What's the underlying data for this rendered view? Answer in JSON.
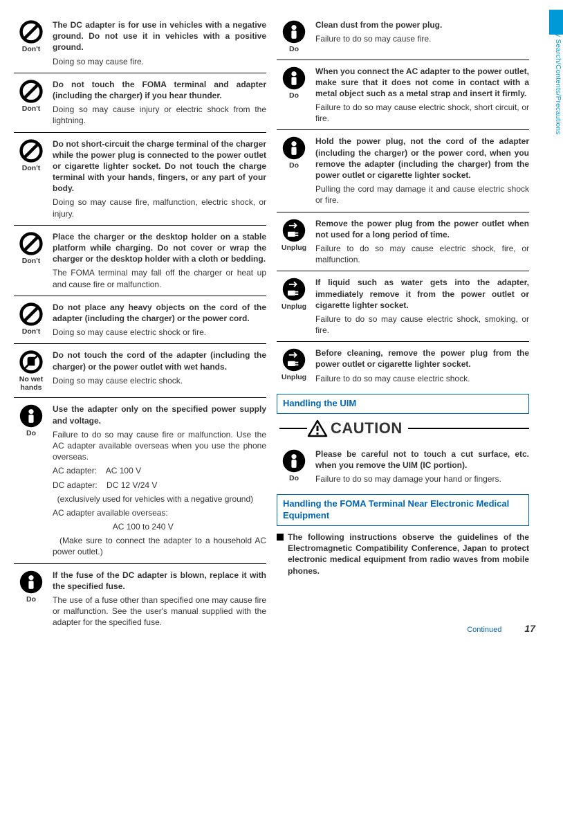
{
  "sideTab": "Easy Search/Contents/Precautions",
  "footer": {
    "continued": "Continued",
    "page": "17"
  },
  "icons": {
    "dont": "Don't",
    "nowet": "No wet hands",
    "do": "Do",
    "unplug": "Unplug"
  },
  "col1": [
    {
      "icon": "dont",
      "bold": "The DC adapter is for use in vehicles with a negative ground. Do not use it in vehicles with a positive ground.",
      "desc": "Doing so may cause fire."
    },
    {
      "icon": "dont",
      "bold": "Do not touch the FOMA terminal and adapter (including the charger) if you hear thunder.",
      "desc": "Doing so may cause injury or electric shock from the lightning."
    },
    {
      "icon": "dont",
      "bold": "Do not short-circuit the charge terminal of the charger while the power plug is connected to the power outlet or cigarette lighter socket. Do not touch the charge terminal with your hands, fingers, or any part of your body.",
      "desc": "Doing so may cause fire, malfunction, electric shock, or injury."
    },
    {
      "icon": "dont",
      "bold": "Place the charger or the desktop holder on a stable platform while charging. Do not cover or wrap the charger or the desktop holder with a cloth or bedding.",
      "desc": "The FOMA terminal may fall off the charger or heat up and cause fire or malfunction."
    },
    {
      "icon": "dont",
      "bold": "Do not place any heavy objects on the cord of the adapter (including the charger) or the power cord.",
      "desc": "Doing so may cause electric shock or fire."
    },
    {
      "icon": "nowet",
      "bold": "Do not touch the cord of the adapter (including the charger) or the power outlet with wet hands.",
      "desc": "Doing so may cause electric shock."
    },
    {
      "icon": "do",
      "bold": "Use the adapter only on the specified power supply and voltage.",
      "desc": "Failure to do so may cause fire or malfunction. Use the AC adapter available overseas when you use the phone overseas.",
      "lines": [
        "AC adapter:    AC 100 V",
        "DC adapter:    DC 12 V/24 V",
        "  (exclusively used for vehicles with a negative ground)",
        "AC adapter available overseas:",
        "                          AC 100 to 240 V",
        "  (Make sure to connect the adapter to a household AC power outlet.)"
      ]
    },
    {
      "icon": "do",
      "bold": "If the fuse of the DC adapter is blown, replace it with the specified fuse.",
      "desc": "The use of a fuse other than specified one may cause fire or malfunction. See the user's manual supplied with the adapter for the specified fuse.",
      "noborder": true
    }
  ],
  "col2": [
    {
      "icon": "do",
      "bold": "Clean dust from the power plug.",
      "desc": "Failure to do so may cause fire."
    },
    {
      "icon": "do",
      "bold": "When you connect the AC adapter to the power outlet, make sure that it does not come in contact with a metal object such as a metal strap and insert it firmly.",
      "desc": "Failure to do so may cause electric shock, short circuit, or fire."
    },
    {
      "icon": "do",
      "bold": "Hold the power plug, not the cord of the adapter (including the charger) or the power cord, when you remove the adapter (including the charger) from the power outlet or cigarette lighter socket.",
      "desc": "Pulling the cord may damage it and cause electric shock or fire."
    },
    {
      "icon": "unplug",
      "bold": "Remove the power plug from the power outlet when not used for a long period of time.",
      "desc": "Failure to do so may cause electric shock, fire, or malfunction."
    },
    {
      "icon": "unplug",
      "bold": "If liquid such as water gets into the adapter, immediately remove it from the power outlet or cigarette lighter socket.",
      "desc": "Failure to do so may cause electric shock, smoking, or fire."
    },
    {
      "icon": "unplug",
      "bold": "Before cleaning, remove the power plug from the power outlet or cigarette lighter socket.",
      "desc": "Failure to do so may cause electric shock.",
      "noborder": true
    }
  ],
  "sections": {
    "uim": "Handling the UIM",
    "caution": "CAUTION",
    "uimItem": {
      "icon": "do",
      "bold": "Please be careful not to touch a cut surface, etc. when you remove the UIM (IC portion).",
      "desc": "Failure to do so may damage your hand or fingers."
    },
    "medical": "Handling the FOMA Terminal Near Electronic Medical Equipment",
    "medicalNote": "The following instructions observe the guidelines of the Electromagnetic Compatibility Conference, Japan to protect electronic medical equipment from radio waves from mobile phones."
  }
}
